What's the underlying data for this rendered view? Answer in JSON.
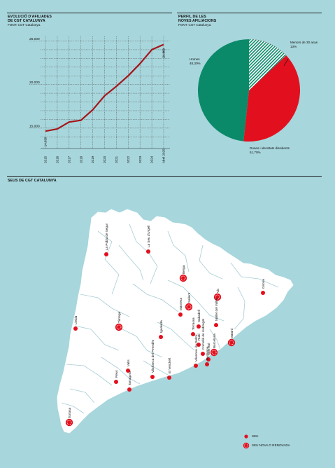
{
  "line_chart": {
    "title_lines": [
      "EVOLUCIÓ D'AFILIADES",
      "DE CGT CATALUNYA"
    ],
    "source": "FONT: CGT Catalunya."
  },
  "pie_chart": {
    "title_lines": [
      "PERFIL DE LES",
      "NOVES AFILIACIONS"
    ],
    "source": "FONT: CGT Catalunya."
  },
  "map": {
    "title": "SEUS DE CGT CATALUNYA",
    "legend": [
      {
        "label": "SEU",
        "symbol": "dot"
      },
      {
        "label": "SEU NOVA O RENOVADA",
        "symbol": "ring"
      }
    ],
    "colors": {
      "water": "#a7d6dc",
      "land": "#ffffff",
      "seat": "#e2101e",
      "borders": "#a7cdd4"
    },
    "seats": [
      {
        "name": "La Pobla de Segur",
        "type": "dot"
      },
      {
        "name": "La Seu d'Urgell",
        "type": "dot"
      },
      {
        "name": "Berga",
        "type": "ring"
      },
      {
        "name": "Girona",
        "type": "dot"
      },
      {
        "name": "Vic",
        "type": "ring"
      },
      {
        "name": "Manresa",
        "type": "dot"
      },
      {
        "name": "Sallent",
        "type": "ring"
      },
      {
        "name": "Terrassa",
        "type": "dot"
      },
      {
        "name": "Sabadell",
        "type": "dot"
      },
      {
        "name": "Mollet del Vallès",
        "type": "dot"
      },
      {
        "name": "Rubí",
        "type": "dot"
      },
      {
        "name": "Mataró",
        "type": "ring"
      },
      {
        "name": "Lleida",
        "type": "dot"
      },
      {
        "name": "Tàrrega",
        "type": "ring"
      },
      {
        "name": "Igualada",
        "type": "dot"
      },
      {
        "name": "Vilafranca del Penedès",
        "type": "dot"
      },
      {
        "name": "El Vendrell",
        "type": "dot"
      },
      {
        "name": "Valls",
        "type": "dot"
      },
      {
        "name": "Reus",
        "type": "dot"
      },
      {
        "name": "Tarragona",
        "type": "dot"
      },
      {
        "name": "Tortosa",
        "type": "ring"
      },
      {
        "name": "Vilanova i la Geltrú",
        "type": "dot"
      },
      {
        "name": "Cornellà de Llobregat",
        "type": "dot"
      },
      {
        "name": "Barcelona",
        "type": "ring"
      },
      {
        "name": "Badalona",
        "type": "dot"
      },
      {
        "name": "Sant Boi",
        "type": "dot"
      }
    ]
  },
  "chart_data": [
    {
      "type": "line",
      "title": "EVOLUCIÓ D'AFILIADES DE CGT CATALUNYA",
      "x": [
        "2015",
        "2016",
        "2017",
        "2018",
        "2019",
        "2020",
        "2021",
        "2022",
        "2023",
        "2024",
        "Abril 2025"
      ],
      "series": [
        {
          "values": [
            14650,
            14900,
            15700,
            15900,
            17100,
            18700,
            19800,
            21000,
            22400,
            24000,
            24600
          ],
          "color": "#a4161a"
        }
      ],
      "start_label": "14.650",
      "end_label": "24.600",
      "y_ticks": [
        {
          "value": 15000,
          "label": "15.000"
        },
        {
          "value": 20000,
          "label": "20.000"
        },
        {
          "value": 25000,
          "label": "25.000"
        }
      ],
      "ylim": [
        13300,
        25200
      ],
      "grid": true,
      "xlabel": "",
      "ylabel": ""
    },
    {
      "type": "pie",
      "title": "PERFIL DE LES NOVES AFILIACIONS",
      "slices": [
        {
          "label": "Menors de 30 anys",
          "value": 13,
          "pct_label": "13%",
          "color": "#0b8a6a",
          "pattern": "stripes"
        },
        {
          "label": "Dones i identitats dissidents",
          "value": 51.7,
          "pct_label": "51,70%",
          "color": "#e2101e"
        },
        {
          "label": "Homes",
          "value": 48.3,
          "pct_label": "48,30%",
          "color": "#0b8a6a"
        }
      ]
    }
  ]
}
